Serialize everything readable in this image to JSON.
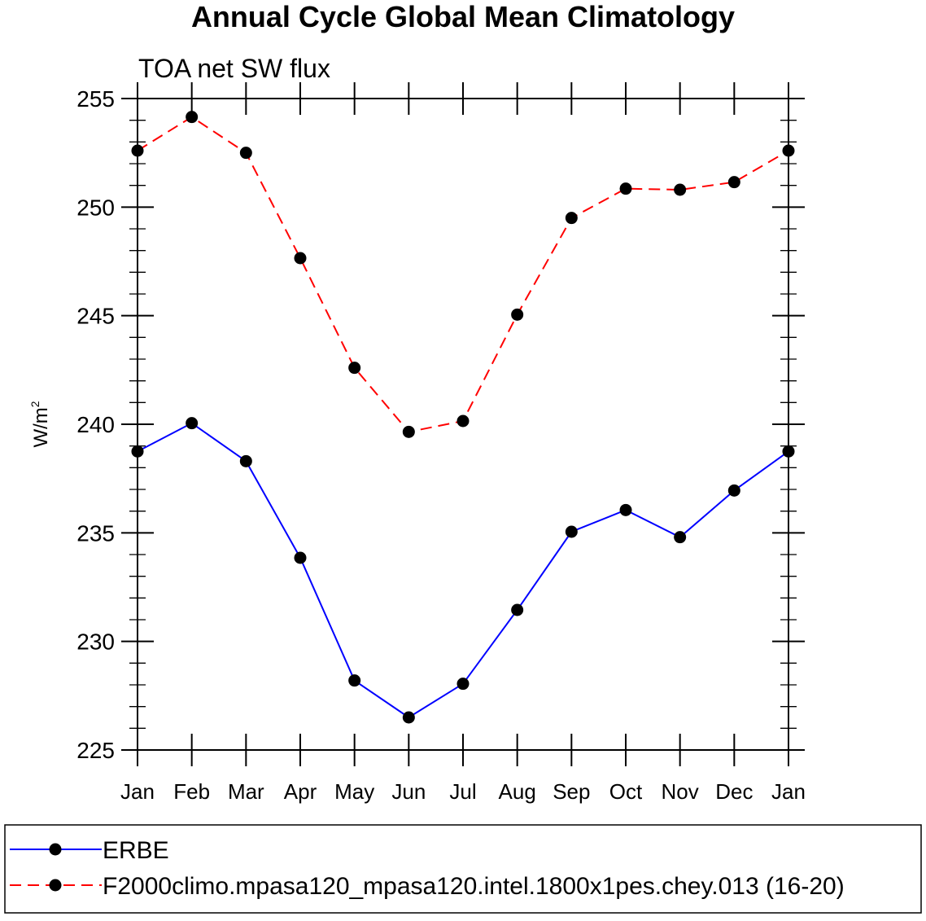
{
  "chart_data": {
    "type": "line",
    "title": "Annual Cycle Global Mean Climatology",
    "subtitle": "TOA net SW flux",
    "ylabel": "W/m",
    "ylabel_sup": "2",
    "xlabel": "",
    "ylim": [
      225,
      255
    ],
    "yticks": [
      "225",
      "230",
      "235",
      "240",
      "245",
      "250",
      "255"
    ],
    "categories": [
      "Jan",
      "Feb",
      "Mar",
      "Apr",
      "May",
      "Jun",
      "Jul",
      "Aug",
      "Sep",
      "Oct",
      "Nov",
      "Dec",
      "Jan"
    ],
    "series": [
      {
        "name": "ERBE",
        "color": "#0000ff",
        "dash": "solid",
        "values": [
          238.75,
          240.05,
          238.3,
          233.85,
          228.2,
          226.5,
          228.05,
          231.45,
          235.05,
          236.05,
          234.8,
          236.95,
          238.75
        ]
      },
      {
        "name": "F2000climo.mpasa120_mpasa120.intel.1800x1pes.chey.013 (16-20)",
        "color": "#ff0000",
        "dash": "dashed",
        "values": [
          252.6,
          254.15,
          252.5,
          247.65,
          242.6,
          239.65,
          240.15,
          245.05,
          249.5,
          250.85,
          250.8,
          251.15,
          252.6
        ]
      }
    ],
    "legend_position": "bottom"
  }
}
